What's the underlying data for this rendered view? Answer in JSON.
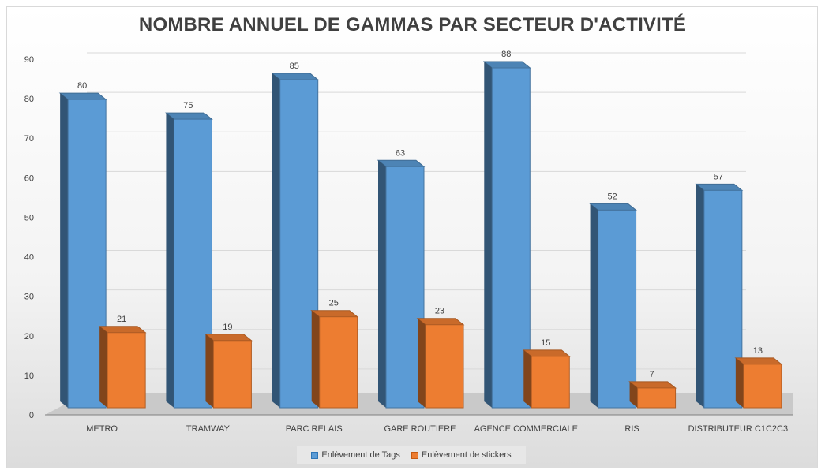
{
  "chart_data": {
    "type": "bar",
    "title": "NOMBRE ANNUEL DE GAMMAS PAR SECTEUR D'ACTIVITÉ",
    "categories": [
      "METRO",
      "TRAMWAY",
      "PARC RELAIS",
      "GARE ROUTIERE",
      "AGENCE COMMERCIALE",
      "RIS",
      "DISTRIBUTEUR C1C2C3"
    ],
    "series": [
      {
        "name": "Enlèvement de Tags",
        "values": [
          80,
          75,
          85,
          63,
          88,
          52,
          57
        ],
        "color": "#5b9bd5"
      },
      {
        "name": "Enlèvement de stickers",
        "values": [
          21,
          19,
          25,
          23,
          15,
          7,
          13
        ],
        "color": "#ed7d31"
      }
    ],
    "ylim": [
      0,
      90
    ],
    "yticks": [
      0,
      10,
      20,
      30,
      40,
      50,
      60,
      70,
      80,
      90
    ],
    "grid": true,
    "legend": "bottom"
  }
}
